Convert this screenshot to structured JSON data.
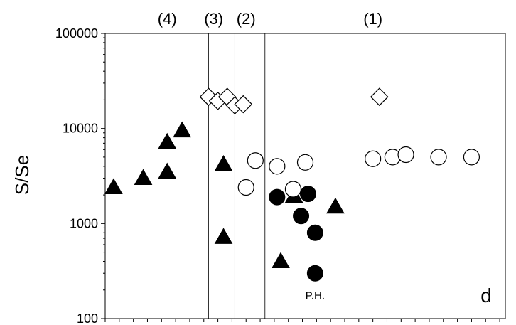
{
  "chart_data": {
    "type": "scatter",
    "title": "",
    "xlabel": "",
    "ylabel": "S/Se",
    "y_scale": "log",
    "ylim": [
      100,
      100000
    ],
    "y_ticks": [
      100,
      1000,
      10000,
      100000
    ],
    "y_tick_labels": [
      "100",
      "1000",
      "10000",
      "100000"
    ],
    "xlim": [
      0,
      14.2
    ],
    "x_tick_labels": "none",
    "grid": false,
    "panel_label": "d",
    "region_labels": [
      {
        "label": "(4)",
        "x": 2.2
      },
      {
        "label": "(3)",
        "x": 3.85
      },
      {
        "label": "(2)",
        "x": 5.0
      },
      {
        "label": "(1)",
        "x": 9.5
      }
    ],
    "region_boundaries_x": [
      3.67,
      4.6,
      5.67
    ],
    "annotations": [
      {
        "text": "P.H.",
        "x": 7.45,
        "y": 175
      }
    ],
    "series": [
      {
        "marker": "filled-triangle",
        "points": [
          {
            "x": 0.3,
            "y": 2400
          },
          {
            "x": 1.35,
            "y": 3000
          },
          {
            "x": 2.2,
            "y": 3500
          },
          {
            "x": 2.2,
            "y": 7200
          },
          {
            "x": 2.73,
            "y": 9500
          },
          {
            "x": 4.2,
            "y": 4200
          },
          {
            "x": 4.2,
            "y": 720
          },
          {
            "x": 6.23,
            "y": 400
          },
          {
            "x": 6.7,
            "y": 1950
          },
          {
            "x": 8.17,
            "y": 1500
          }
        ]
      },
      {
        "marker": "hollow-circle",
        "points": [
          {
            "x": 5.0,
            "y": 2400
          },
          {
            "x": 5.33,
            "y": 4600
          },
          {
            "x": 6.1,
            "y": 4000
          },
          {
            "x": 6.67,
            "y": 2300
          },
          {
            "x": 7.1,
            "y": 4400
          },
          {
            "x": 9.5,
            "y": 4800
          },
          {
            "x": 10.2,
            "y": 5000
          },
          {
            "x": 10.67,
            "y": 5300
          },
          {
            "x": 11.83,
            "y": 5000
          },
          {
            "x": 13.0,
            "y": 5000
          }
        ]
      },
      {
        "marker": "filled-circle",
        "points": [
          {
            "x": 6.1,
            "y": 1900
          },
          {
            "x": 6.95,
            "y": 1200
          },
          {
            "x": 7.45,
            "y": 800
          },
          {
            "x": 7.2,
            "y": 2050
          },
          {
            "x": 7.45,
            "y": 300
          }
        ]
      },
      {
        "marker": "hollow-diamond",
        "points": [
          {
            "x": 3.67,
            "y": 21500
          },
          {
            "x": 4.0,
            "y": 19500
          },
          {
            "x": 4.33,
            "y": 21500
          },
          {
            "x": 4.6,
            "y": 17500
          },
          {
            "x": 4.9,
            "y": 18000
          },
          {
            "x": 9.73,
            "y": 21500
          }
        ]
      }
    ]
  }
}
